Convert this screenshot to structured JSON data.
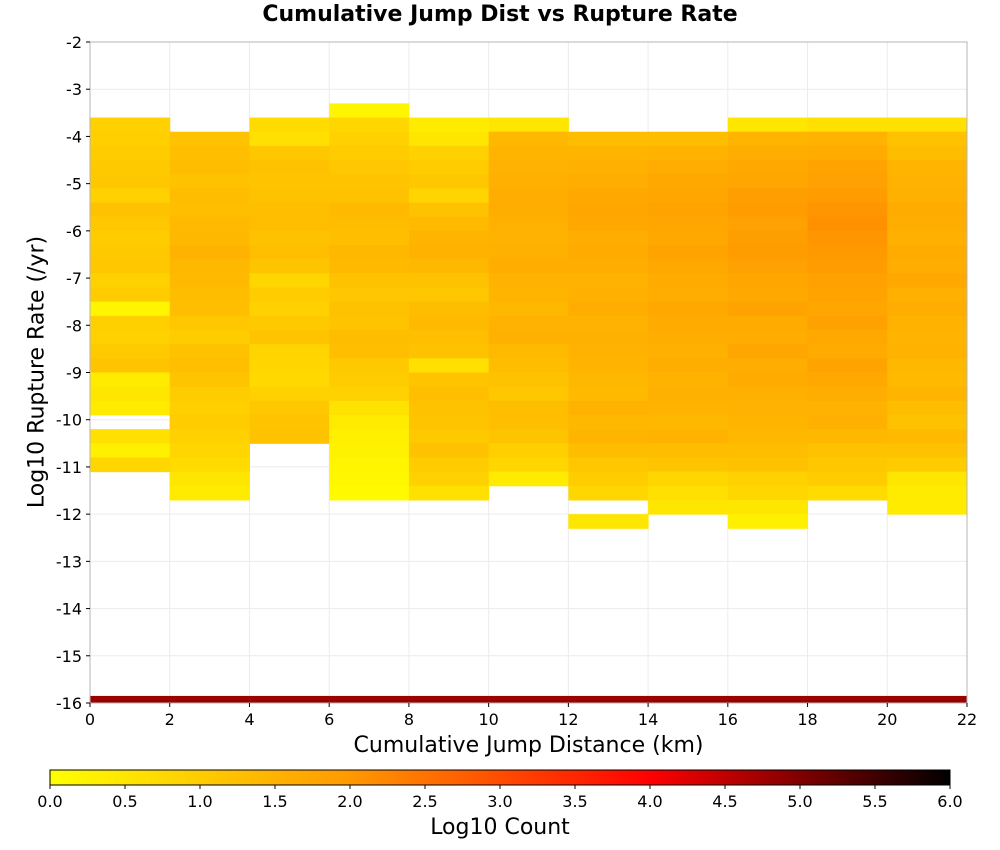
{
  "chart_data": {
    "type": "heatmap",
    "title": "Cumulative Jump Dist vs Rupture Rate",
    "xlabel": "Cumulative Jump Distance (km)",
    "ylabel": "Log10 Rupture Rate (/yr)",
    "xlim": [
      0,
      22
    ],
    "ylim": [
      -16,
      -2
    ],
    "xticks": [
      "0",
      "2",
      "4",
      "6",
      "8",
      "10",
      "12",
      "14",
      "16",
      "18",
      "20",
      "22"
    ],
    "yticks": [
      "-2",
      "-3",
      "-4",
      "-5",
      "-6",
      "-7",
      "-8",
      "-9",
      "-10",
      "-11",
      "-12",
      "-13",
      "-14",
      "-15",
      "-16"
    ],
    "grid": true,
    "x_bin_edges": [
      0,
      2,
      4,
      6,
      8,
      10,
      12,
      14,
      16,
      18,
      20,
      22
    ],
    "y_bin_height": 0.3,
    "y_bin_start": -3.3,
    "z_label": "Log10 Count",
    "z_range": [
      0,
      6
    ],
    "colormap": [
      "#ffff00",
      "#ff9900",
      "#ff0000",
      "#000000"
    ],
    "colorbar_ticks": [
      "0.0",
      "0.5",
      "1.0",
      "1.5",
      "2.0",
      "2.5",
      "3.0",
      "3.5",
      "4.0",
      "4.5",
      "5.0",
      "5.5",
      "6.0"
    ],
    "row_note": "columns[i].values[k] = log10 count in bin from x_bin_edges[i] to x_bin_edges[i+1], rupture-rate bin k counting down from y_bin_start; null = empty",
    "columns": [
      {
        "values": [
          null,
          0.9,
          0.95,
          1.0,
          1.05,
          1.1,
          0.9,
          1.2,
          1.1,
          1.0,
          1.05,
          1.1,
          0.9,
          1.0,
          0.2,
          0.95,
          0.9,
          1.05,
          1.15,
          0.4,
          0.5,
          0.4,
          null,
          0.6,
          0.3,
          0.8
        ]
      },
      {
        "values": [
          null,
          null,
          1.2,
          1.25,
          1.3,
          1.2,
          1.3,
          1.25,
          1.35,
          1.4,
          1.5,
          1.4,
          1.35,
          1.3,
          1.25,
          1.1,
          1.0,
          1.2,
          1.25,
          1.15,
          1.0,
          0.95,
          1.0,
          0.9,
          0.8,
          0.7,
          0.5,
          0.4
        ]
      },
      {
        "values": [
          null,
          0.7,
          0.6,
          1.1,
          1.2,
          1.15,
          1.2,
          1.25,
          1.3,
          1.2,
          1.25,
          1.15,
          0.8,
          1.0,
          0.9,
          1.05,
          1.15,
          0.85,
          0.8,
          0.75,
          0.9,
          1.1,
          1.15,
          1.2
        ]
      },
      {
        "values": [
          0.2,
          0.8,
          0.9,
          1.0,
          1.1,
          1.15,
          1.2,
          1.35,
          1.3,
          1.25,
          1.4,
          1.35,
          1.2,
          1.1,
          1.2,
          1.15,
          1.3,
          1.25,
          1.05,
          1.0,
          0.9,
          0.55,
          0.4,
          0.3,
          0.25,
          0.2,
          0.15,
          0.1
        ]
      },
      {
        "values": [
          null,
          0.4,
          0.5,
          0.9,
          1.0,
          1.1,
          0.85,
          1.2,
          1.35,
          1.45,
          1.5,
          1.4,
          1.2,
          1.1,
          1.3,
          1.35,
          1.25,
          1.2,
          0.6,
          1.15,
          1.25,
          1.2,
          1.15,
          1.05,
          1.2,
          1.0,
          0.9,
          0.6
        ]
      },
      {
        "values": [
          null,
          0.5,
          1.4,
          1.45,
          1.5,
          1.55,
          1.6,
          1.6,
          1.55,
          1.5,
          1.55,
          1.6,
          1.5,
          1.45,
          1.4,
          1.5,
          1.55,
          1.35,
          1.3,
          1.2,
          1.1,
          1.3,
          1.25,
          1.15,
          0.95,
          0.8,
          0.4
        ]
      },
      {
        "values": [
          null,
          null,
          1.3,
          1.45,
          1.55,
          1.6,
          1.7,
          1.75,
          1.7,
          1.6,
          1.65,
          1.6,
          1.5,
          1.55,
          1.6,
          1.5,
          1.55,
          1.5,
          1.45,
          1.4,
          1.35,
          1.5,
          1.4,
          1.45,
          1.3,
          1.1,
          1.0,
          0.8,
          null,
          0.5
        ]
      },
      {
        "values": [
          null,
          null,
          1.3,
          1.5,
          1.6,
          1.7,
          1.75,
          1.8,
          1.75,
          1.7,
          1.8,
          1.7,
          1.65,
          1.6,
          1.7,
          1.65,
          1.6,
          1.55,
          1.6,
          1.5,
          1.55,
          1.45,
          1.4,
          1.5,
          1.3,
          1.15,
          0.8,
          0.6,
          0.5
        ]
      },
      {
        "values": [
          null,
          0.5,
          1.45,
          1.6,
          1.7,
          1.75,
          1.9,
          1.95,
          1.85,
          1.9,
          1.95,
          1.85,
          1.75,
          1.7,
          1.8,
          1.65,
          1.6,
          1.75,
          1.6,
          1.65,
          1.55,
          1.5,
          1.45,
          1.4,
          1.3,
          1.2,
          0.9,
          0.8,
          0.5,
          0.3
        ]
      },
      {
        "values": [
          null,
          0.6,
          1.5,
          1.65,
          1.8,
          1.85,
          1.95,
          2.05,
          2.1,
          2.05,
          2.0,
          1.95,
          1.85,
          1.8,
          1.75,
          1.85,
          1.7,
          1.65,
          1.8,
          1.7,
          1.6,
          1.5,
          1.55,
          1.4,
          1.2,
          1.1,
          1.0,
          0.7
        ]
      },
      {
        "values": [
          null,
          0.6,
          1.2,
          1.3,
          1.45,
          1.5,
          1.55,
          1.65,
          1.6,
          1.55,
          1.65,
          1.6,
          1.7,
          1.55,
          1.6,
          1.5,
          1.45,
          1.5,
          1.4,
          1.35,
          1.45,
          1.3,
          1.2,
          1.35,
          1.2,
          1.0,
          0.5,
          0.4,
          0.4
        ]
      }
    ]
  }
}
